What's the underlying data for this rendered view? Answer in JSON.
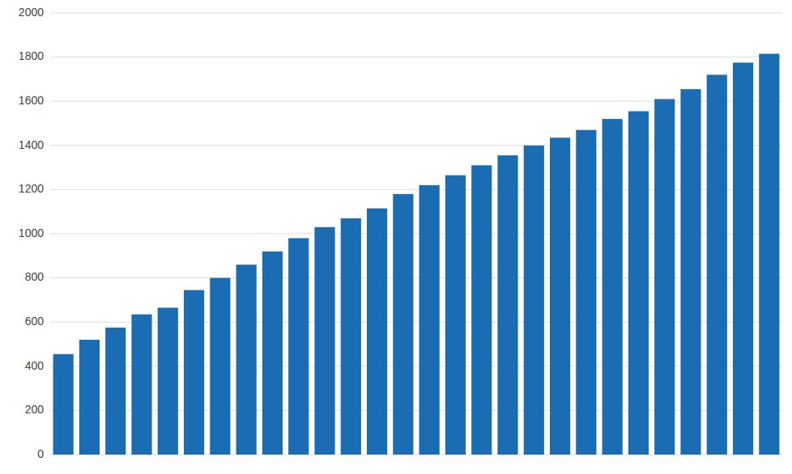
{
  "chart_data": {
    "type": "bar",
    "categories": [
      null,
      null,
      null,
      null,
      null,
      null,
      null,
      null,
      null,
      null,
      null,
      null,
      null,
      null,
      null,
      null,
      null,
      null,
      null,
      null,
      null,
      null,
      null,
      null,
      null,
      null,
      null,
      null
    ],
    "values": [
      455,
      520,
      575,
      635,
      665,
      745,
      800,
      860,
      920,
      980,
      1030,
      1070,
      1115,
      1180,
      1220,
      1265,
      1310,
      1355,
      1400,
      1435,
      1470,
      1520,
      1555,
      1610,
      1655,
      1720,
      1775,
      1815
    ],
    "color": "#1B6DB3",
    "ylim": [
      0,
      2000
    ],
    "yticks": [
      0,
      200,
      400,
      600,
      800,
      1000,
      1200,
      1400,
      1600,
      1800,
      2000
    ],
    "grid": true,
    "tick_labels": "y"
  }
}
